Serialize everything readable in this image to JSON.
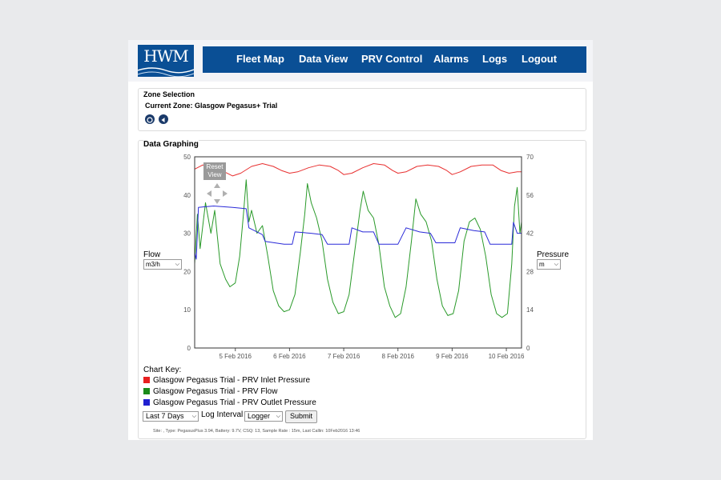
{
  "header": {
    "logo_text": "HWM",
    "nav": [
      {
        "label": "Fleet Map"
      },
      {
        "label": "Data View"
      },
      {
        "label": "PRV Control"
      },
      {
        "label": "Alarms"
      },
      {
        "label": "Logs"
      },
      {
        "label": "Logout"
      }
    ]
  },
  "zone": {
    "title": "Zone Selection",
    "current": "Current Zone: Glasgow Pegasus+ Trial"
  },
  "graph": {
    "title": "Data Graphing",
    "flow_label": "Flow",
    "flow_unit": "m3/h",
    "pressure_label": "Pressure",
    "pressure_unit": "m",
    "reset_view": "Reset View",
    "key_title": "Chart Key:",
    "range_select": "Last 7 Days",
    "log_interval_label": "Log Interval",
    "log_interval_select": "Logger",
    "submit": "Submit",
    "status": "Site: , Type: PegasusPlus 3.94, Battery: 9.7V, CSQ: 13, Sample Rate : 15m, Last Callin: 10Feb2016 13:46"
  },
  "chart_data": {
    "type": "line",
    "x_tick_labels": [
      "5 Feb 2016",
      "6 Feb 2016",
      "7 Feb 2016",
      "8 Feb 2016",
      "9 Feb 2016",
      "10 Feb 2016"
    ],
    "x_tick_days": [
      1,
      2,
      3,
      4,
      5,
      6
    ],
    "x_range_days": [
      0.25,
      6.28
    ],
    "y_left": {
      "label": "Flow",
      "unit": "m3/h",
      "range": [
        0,
        50
      ],
      "ticks": [
        0,
        10,
        20,
        30,
        40,
        50
      ]
    },
    "y_right": {
      "label": "Pressure",
      "unit": "m",
      "range": [
        0,
        70
      ],
      "ticks": [
        0,
        14,
        28,
        42,
        56,
        70
      ]
    },
    "legend": "below",
    "series": [
      {
        "name": "Glasgow Pegasus Trial - PRV Inlet Pressure",
        "color": "#e83030",
        "axis": "right",
        "points": [
          [
            0.25,
            65.5
          ],
          [
            0.4,
            67.0
          ],
          [
            0.6,
            66.5
          ],
          [
            0.8,
            64.5
          ],
          [
            0.95,
            63.0
          ],
          [
            1.1,
            64.0
          ],
          [
            1.3,
            66.5
          ],
          [
            1.5,
            67.5
          ],
          [
            1.7,
            66.5
          ],
          [
            1.85,
            65.0
          ],
          [
            2.0,
            64.0
          ],
          [
            2.15,
            64.5
          ],
          [
            2.35,
            66.0
          ],
          [
            2.55,
            67.0
          ],
          [
            2.75,
            66.5
          ],
          [
            2.9,
            65.0
          ],
          [
            3.0,
            63.5
          ],
          [
            3.15,
            64.0
          ],
          [
            3.35,
            66.0
          ],
          [
            3.55,
            67.5
          ],
          [
            3.75,
            67.0
          ],
          [
            3.9,
            65.0
          ],
          [
            4.0,
            64.0
          ],
          [
            4.15,
            64.5
          ],
          [
            4.35,
            66.5
          ],
          [
            4.55,
            67.0
          ],
          [
            4.75,
            66.5
          ],
          [
            4.9,
            65.0
          ],
          [
            5.0,
            63.5
          ],
          [
            5.15,
            64.5
          ],
          [
            5.35,
            66.5
          ],
          [
            5.55,
            67.0
          ],
          [
            5.75,
            67.0
          ],
          [
            5.9,
            65.0
          ],
          [
            6.05,
            64.0
          ],
          [
            6.2,
            64.5
          ],
          [
            6.28,
            64.5
          ]
        ]
      },
      {
        "name": "Glasgow Pegasus Trial - PRV Flow",
        "color": "#2a9a2a",
        "axis": "left",
        "points": [
          [
            0.25,
            22.0
          ],
          [
            0.3,
            35.0
          ],
          [
            0.35,
            26.0
          ],
          [
            0.45,
            38.0
          ],
          [
            0.55,
            30.0
          ],
          [
            0.62,
            36.0
          ],
          [
            0.72,
            22.0
          ],
          [
            0.82,
            18.0
          ],
          [
            0.9,
            16.0
          ],
          [
            1.0,
            17.0
          ],
          [
            1.08,
            24.0
          ],
          [
            1.15,
            35.0
          ],
          [
            1.2,
            44.0
          ],
          [
            1.25,
            33.0
          ],
          [
            1.3,
            36.0
          ],
          [
            1.4,
            30.0
          ],
          [
            1.5,
            32.0
          ],
          [
            1.6,
            24.0
          ],
          [
            1.7,
            15.0
          ],
          [
            1.8,
            11.0
          ],
          [
            1.9,
            9.5
          ],
          [
            2.0,
            10.0
          ],
          [
            2.1,
            14.0
          ],
          [
            2.2,
            25.0
          ],
          [
            2.28,
            35.0
          ],
          [
            2.33,
            43.0
          ],
          [
            2.4,
            38.0
          ],
          [
            2.5,
            34.0
          ],
          [
            2.6,
            28.0
          ],
          [
            2.7,
            18.0
          ],
          [
            2.8,
            12.0
          ],
          [
            2.9,
            9.0
          ],
          [
            3.0,
            9.5
          ],
          [
            3.1,
            14.0
          ],
          [
            3.2,
            25.0
          ],
          [
            3.3,
            36.0
          ],
          [
            3.36,
            41.0
          ],
          [
            3.45,
            36.0
          ],
          [
            3.55,
            34.0
          ],
          [
            3.65,
            27.0
          ],
          [
            3.75,
            16.0
          ],
          [
            3.85,
            11.0
          ],
          [
            3.95,
            8.0
          ],
          [
            4.05,
            9.0
          ],
          [
            4.15,
            16.0
          ],
          [
            4.25,
            28.0
          ],
          [
            4.33,
            39.0
          ],
          [
            4.42,
            35.0
          ],
          [
            4.52,
            33.0
          ],
          [
            4.62,
            28.0
          ],
          [
            4.72,
            18.0
          ],
          [
            4.82,
            11.0
          ],
          [
            4.92,
            8.5
          ],
          [
            5.02,
            9.0
          ],
          [
            5.12,
            15.0
          ],
          [
            5.22,
            28.0
          ],
          [
            5.32,
            33.0
          ],
          [
            5.42,
            34.0
          ],
          [
            5.52,
            31.0
          ],
          [
            5.62,
            24.0
          ],
          [
            5.72,
            14.0
          ],
          [
            5.82,
            9.0
          ],
          [
            5.92,
            8.0
          ],
          [
            6.02,
            9.0
          ],
          [
            6.1,
            22.0
          ],
          [
            6.15,
            37.0
          ],
          [
            6.2,
            42.0
          ],
          [
            6.25,
            30.0
          ],
          [
            6.28,
            33.0
          ]
        ]
      },
      {
        "name": "Glasgow Pegasus Trial - PRV Outlet Pressure",
        "color": "#2a2ad8",
        "axis": "right",
        "points": [
          [
            0.25,
            35.0
          ],
          [
            0.28,
            32.5
          ],
          [
            0.32,
            51.5
          ],
          [
            0.6,
            52.0
          ],
          [
            0.95,
            51.5
          ],
          [
            1.2,
            51.0
          ],
          [
            1.25,
            44.0
          ],
          [
            1.5,
            41.5
          ],
          [
            1.55,
            39.0
          ],
          [
            1.9,
            38.0
          ],
          [
            2.05,
            38.0
          ],
          [
            2.1,
            42.5
          ],
          [
            2.4,
            42.0
          ],
          [
            2.6,
            41.5
          ],
          [
            2.7,
            38.0
          ],
          [
            3.1,
            38.0
          ],
          [
            3.15,
            44.0
          ],
          [
            3.35,
            42.5
          ],
          [
            3.55,
            42.5
          ],
          [
            3.65,
            38.0
          ],
          [
            4.0,
            38.0
          ],
          [
            4.15,
            44.0
          ],
          [
            4.4,
            42.5
          ],
          [
            4.6,
            42.0
          ],
          [
            4.7,
            38.5
          ],
          [
            5.05,
            38.5
          ],
          [
            5.15,
            44.0
          ],
          [
            5.4,
            43.0
          ],
          [
            5.6,
            42.5
          ],
          [
            5.7,
            38.0
          ],
          [
            6.1,
            38.0
          ],
          [
            6.13,
            46.0
          ],
          [
            6.2,
            42.0
          ],
          [
            6.28,
            42.0
          ]
        ]
      }
    ]
  }
}
